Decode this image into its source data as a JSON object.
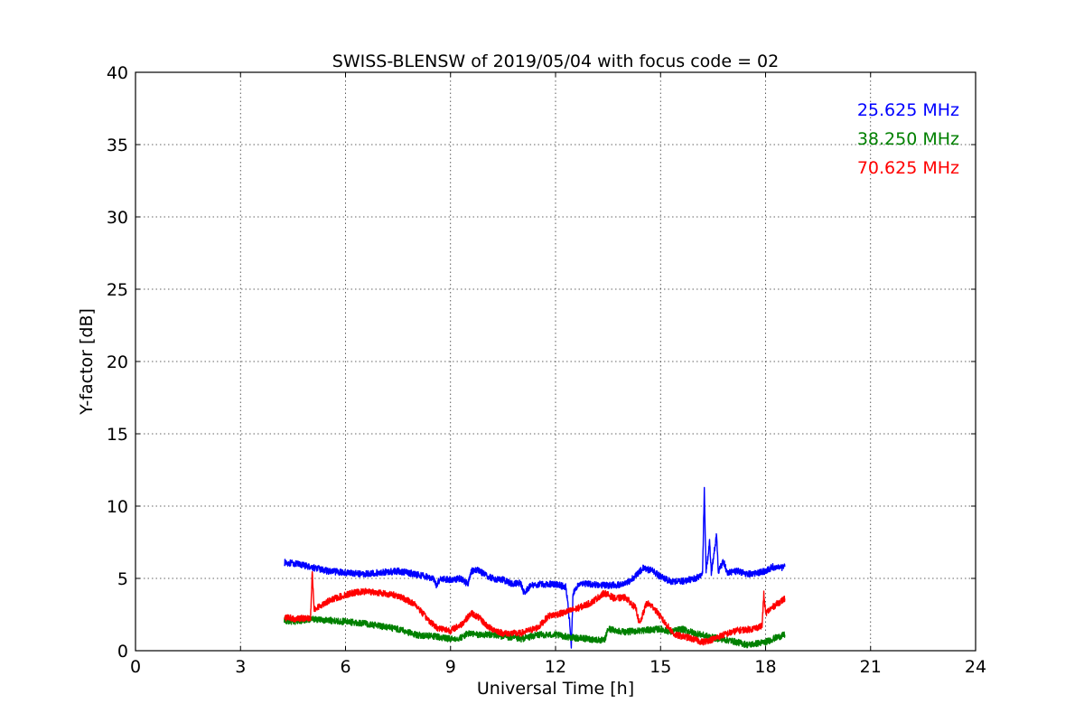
{
  "chart_data": {
    "type": "line",
    "title": "SWISS-BLENSW of 2019/05/04 with focus code = 02",
    "xlabel": "Universal Time [h]",
    "ylabel": "Y-factor [dB]",
    "xlim": [
      0,
      24
    ],
    "ylim": [
      0,
      40
    ],
    "xticks": [
      0,
      3,
      6,
      9,
      12,
      15,
      18,
      21,
      24
    ],
    "yticks": [
      0,
      5,
      10,
      15,
      20,
      25,
      30,
      35,
      40
    ],
    "xtick_labels": [
      "0",
      "3",
      "6",
      "9",
      "12",
      "15",
      "18",
      "21",
      "24"
    ],
    "ytick_labels": [
      "0",
      "5",
      "10",
      "15",
      "20",
      "25",
      "30",
      "35",
      "40"
    ],
    "grid": true,
    "legend_position": "top-right",
    "series": [
      {
        "name": "25.625 MHz",
        "color": "#0000ff",
        "points": [
          [
            4.25,
            6.1
          ],
          [
            4.6,
            6.0
          ],
          [
            5.0,
            5.8
          ],
          [
            5.5,
            5.5
          ],
          [
            6.0,
            5.4
          ],
          [
            6.5,
            5.3
          ],
          [
            7.0,
            5.4
          ],
          [
            7.5,
            5.5
          ],
          [
            8.0,
            5.3
          ],
          [
            8.5,
            5.0
          ],
          [
            8.6,
            4.5
          ],
          [
            8.7,
            5.0
          ],
          [
            9.0,
            4.9
          ],
          [
            9.3,
            5.0
          ],
          [
            9.5,
            4.6
          ],
          [
            9.6,
            5.5
          ],
          [
            9.8,
            5.6
          ],
          [
            10.0,
            5.2
          ],
          [
            10.2,
            5.0
          ],
          [
            10.5,
            4.9
          ],
          [
            10.8,
            4.6
          ],
          [
            11.0,
            4.7
          ],
          [
            11.1,
            4.0
          ],
          [
            11.3,
            4.5
          ],
          [
            11.5,
            4.6
          ],
          [
            12.0,
            4.6
          ],
          [
            12.3,
            4.4
          ],
          [
            12.4,
            2.0
          ],
          [
            12.45,
            0.2
          ],
          [
            12.5,
            4.0
          ],
          [
            12.7,
            4.7
          ],
          [
            13.0,
            4.6
          ],
          [
            13.5,
            4.5
          ],
          [
            14.0,
            4.6
          ],
          [
            14.3,
            5.2
          ],
          [
            14.5,
            5.7
          ],
          [
            14.8,
            5.5
          ],
          [
            15.0,
            5.1
          ],
          [
            15.3,
            4.8
          ],
          [
            15.6,
            4.8
          ],
          [
            16.0,
            5.0
          ],
          [
            16.2,
            5.3
          ],
          [
            16.25,
            11.2
          ],
          [
            16.3,
            5.4
          ],
          [
            16.4,
            7.5
          ],
          [
            16.45,
            5.4
          ],
          [
            16.6,
            8.0
          ],
          [
            16.65,
            5.5
          ],
          [
            16.8,
            6.2
          ],
          [
            16.9,
            5.4
          ],
          [
            17.2,
            5.5
          ],
          [
            17.5,
            5.3
          ],
          [
            17.8,
            5.4
          ],
          [
            18.0,
            5.5
          ],
          [
            18.2,
            5.8
          ],
          [
            18.4,
            5.7
          ],
          [
            18.55,
            5.8
          ]
        ]
      },
      {
        "name": "38.250 MHz",
        "color": "#008000",
        "points": [
          [
            4.25,
            2.1
          ],
          [
            4.6,
            2.0
          ],
          [
            5.0,
            2.2
          ],
          [
            5.5,
            2.1
          ],
          [
            6.0,
            2.0
          ],
          [
            6.5,
            1.9
          ],
          [
            7.0,
            1.7
          ],
          [
            7.5,
            1.5
          ],
          [
            8.0,
            1.1
          ],
          [
            8.5,
            1.0
          ],
          [
            9.0,
            0.8
          ],
          [
            9.3,
            0.9
          ],
          [
            9.5,
            1.2
          ],
          [
            9.8,
            1.1
          ],
          [
            10.2,
            1.1
          ],
          [
            10.5,
            1.0
          ],
          [
            11.0,
            0.8
          ],
          [
            11.5,
            1.1
          ],
          [
            12.0,
            1.1
          ],
          [
            12.5,
            0.9
          ],
          [
            13.0,
            0.8
          ],
          [
            13.4,
            0.7
          ],
          [
            13.5,
            1.5
          ],
          [
            14.0,
            1.3
          ],
          [
            14.5,
            1.4
          ],
          [
            15.0,
            1.5
          ],
          [
            15.3,
            1.3
          ],
          [
            15.6,
            1.5
          ],
          [
            16.0,
            1.2
          ],
          [
            16.5,
            0.9
          ],
          [
            17.0,
            0.7
          ],
          [
            17.5,
            0.4
          ],
          [
            18.0,
            0.6
          ],
          [
            18.3,
            0.9
          ],
          [
            18.55,
            1.1
          ]
        ]
      },
      {
        "name": "70.625 MHz",
        "color": "#ff0000",
        "points": [
          [
            4.25,
            2.3
          ],
          [
            4.6,
            2.2
          ],
          [
            5.0,
            2.3
          ],
          [
            5.05,
            5.5
          ],
          [
            5.1,
            2.8
          ],
          [
            5.4,
            3.3
          ],
          [
            5.8,
            3.7
          ],
          [
            6.2,
            4.0
          ],
          [
            6.6,
            4.1
          ],
          [
            7.0,
            4.0
          ],
          [
            7.5,
            3.8
          ],
          [
            8.0,
            3.2
          ],
          [
            8.3,
            2.3
          ],
          [
            8.6,
            1.6
          ],
          [
            9.0,
            1.4
          ],
          [
            9.3,
            1.8
          ],
          [
            9.6,
            2.6
          ],
          [
            9.8,
            2.3
          ],
          [
            10.1,
            1.6
          ],
          [
            10.5,
            1.2
          ],
          [
            11.0,
            1.2
          ],
          [
            11.5,
            1.6
          ],
          [
            11.8,
            2.4
          ],
          [
            12.2,
            2.6
          ],
          [
            12.6,
            2.9
          ],
          [
            13.0,
            3.3
          ],
          [
            13.4,
            4.0
          ],
          [
            13.7,
            3.6
          ],
          [
            14.0,
            3.7
          ],
          [
            14.3,
            2.9
          ],
          [
            14.4,
            1.8
          ],
          [
            14.6,
            3.3
          ],
          [
            14.8,
            3.0
          ],
          [
            15.1,
            2.0
          ],
          [
            15.4,
            1.1
          ],
          [
            15.8,
            0.9
          ],
          [
            16.2,
            0.6
          ],
          [
            16.5,
            0.8
          ],
          [
            16.8,
            1.1
          ],
          [
            17.2,
            1.4
          ],
          [
            17.6,
            1.5
          ],
          [
            17.9,
            1.7
          ],
          [
            17.95,
            3.9
          ],
          [
            18.0,
            2.6
          ],
          [
            18.3,
            3.2
          ],
          [
            18.55,
            3.6
          ]
        ]
      }
    ]
  }
}
